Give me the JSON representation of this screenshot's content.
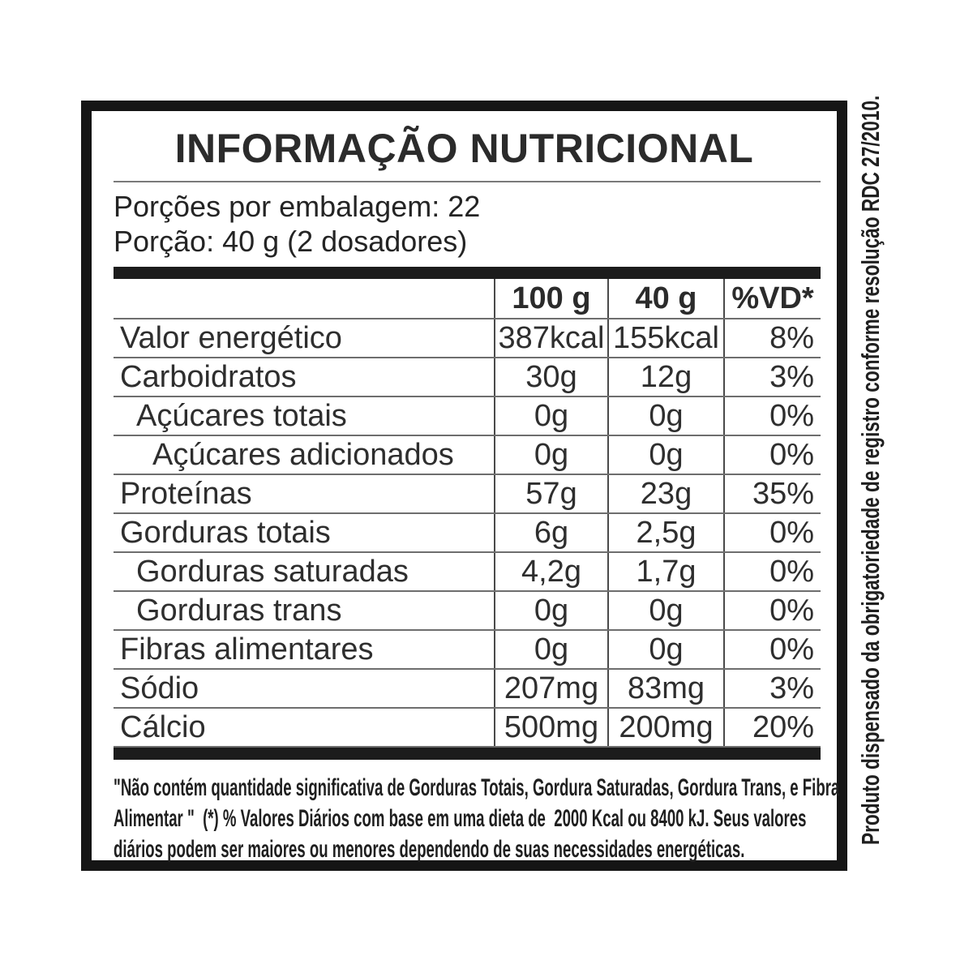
{
  "label": {
    "title": "INFORMAÇÃO NUTRICIONAL",
    "servings_per_package": "Porções por embalagem: 22",
    "serving_size": "Porção: 40 g (2 dosadores)",
    "side_note": "Produto dispensado da obrigatoriedade de registro conforme resolução RDC 27/2010."
  },
  "table": {
    "columns": [
      "100 g",
      "40 g",
      "%VD*"
    ],
    "rows": [
      {
        "label": "Valor energético",
        "per100": "387kcal",
        "per40": "155kcal",
        "vd": "8%"
      },
      {
        "label": "Carboidratos",
        "per100": "30g",
        "per40": "12g",
        "vd": "3%"
      },
      {
        "label": "Açúcares totais",
        "per100": "0g",
        "per40": "0g",
        "vd": "0%"
      },
      {
        "label": "Açúcares adicionados",
        "per100": "0g",
        "per40": "0g",
        "vd": "0%"
      },
      {
        "label": "Proteínas",
        "per100": "57g",
        "per40": "23g",
        "vd": "35%"
      },
      {
        "label": "Gorduras totais",
        "per100": "6g",
        "per40": "2,5g",
        "vd": "0%"
      },
      {
        "label": "Gorduras saturadas",
        "per100": "4,2g",
        "per40": "1,7g",
        "vd": "0%"
      },
      {
        "label": "Gorduras trans",
        "per100": "0g",
        "per40": "0g",
        "vd": "0%"
      },
      {
        "label": "Fibras alimentares",
        "per100": "0g",
        "per40": "0g",
        "vd": "0%"
      },
      {
        "label": "Sódio",
        "per100": "207mg",
        "per40": "83mg",
        "vd": "3%"
      },
      {
        "label": "Cálcio",
        "per100": "500mg",
        "per40": "200mg",
        "vd": "20%"
      }
    ]
  },
  "footer": {
    "lines": [
      "\"Não contém quantidade significativa de Gorduras Totais, Gordura Saturadas, Gordura Trans, e Fibra",
      "Alimentar \"  (*) % Valores Diários com base em uma dieta de  2000 Kcal ou 8400 kJ. Seus valores",
      "diários podem ser maiores ou menores dependendo de suas necessidades energéticas."
    ]
  }
}
